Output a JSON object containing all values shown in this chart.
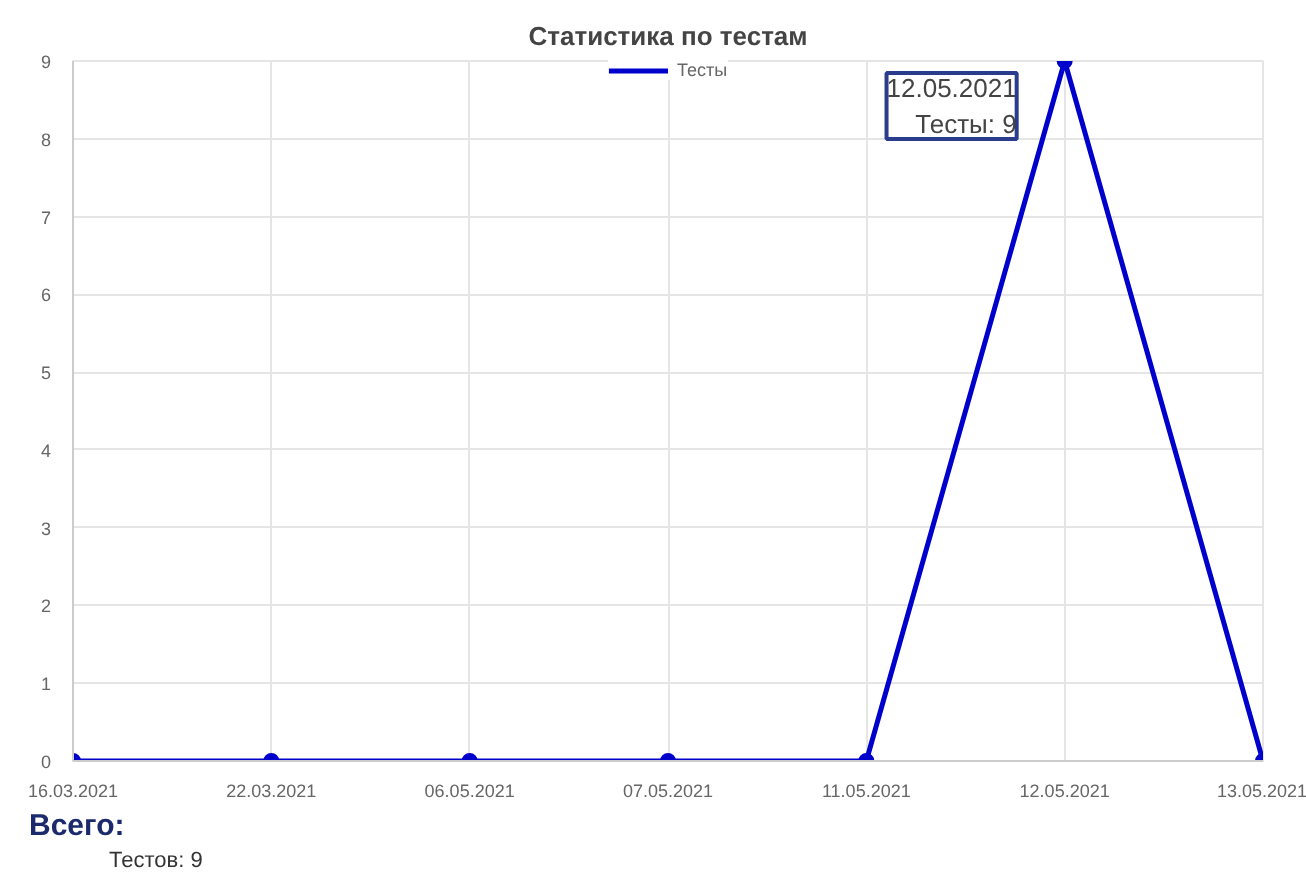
{
  "chart_data": {
    "type": "line",
    "title": "Статистика по тестам",
    "categories": [
      "16.03.2021",
      "22.03.2021",
      "06.05.2021",
      "07.05.2021",
      "11.05.2021",
      "12.05.2021",
      "13.05.2021"
    ],
    "series": [
      {
        "name": "Тесты",
        "color": "#0000cc",
        "values": [
          0,
          0,
          0,
          0,
          0,
          9,
          0
        ]
      }
    ],
    "ylim": [
      0,
      9
    ],
    "yticks": [
      0,
      1,
      2,
      3,
      4,
      5,
      6,
      7,
      8,
      9
    ],
    "grid": true,
    "legend": "top",
    "marker": "circle",
    "annotations": [
      {
        "text": "12.05.2021\nТесты: 9",
        "x": "12.05.2021",
        "y": 9
      },
      "Всего:",
      "Тестов: 9"
    ]
  }
}
